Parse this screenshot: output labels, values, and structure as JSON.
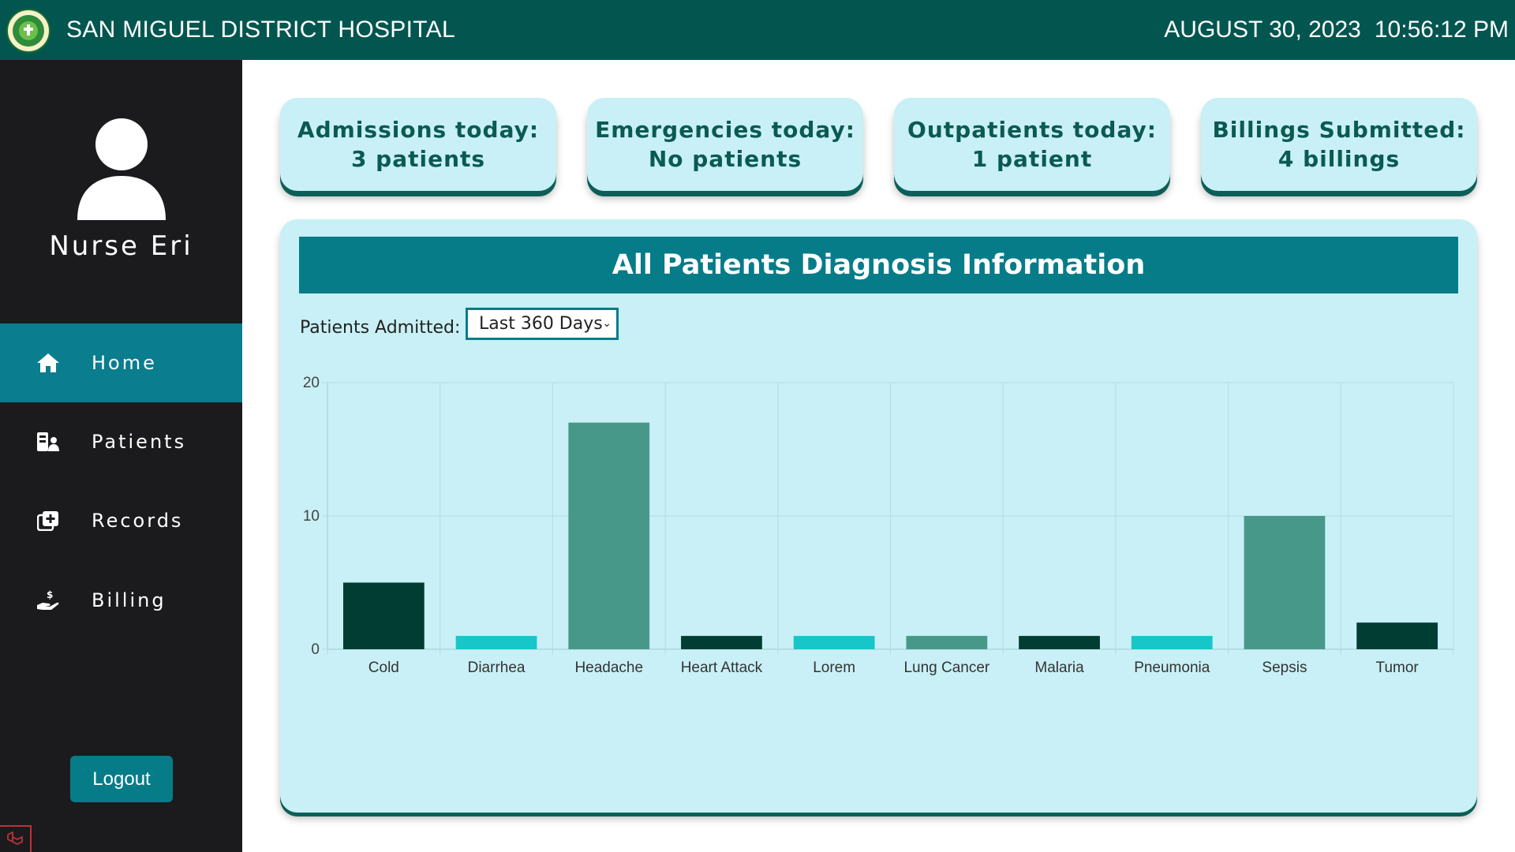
{
  "header": {
    "hospital_name": "SAN MIGUEL DISTRICT HOSPITAL",
    "date": "AUGUST 30, 2023",
    "time": "10:56:12 PM",
    "logo_icon": "hospital-seal-icon"
  },
  "sidebar": {
    "user_name": "Nurse Eri",
    "avatar_icon": "user-avatar-icon",
    "items": [
      {
        "label": "Home",
        "icon": "home-icon",
        "active": true
      },
      {
        "label": "Patients",
        "icon": "patients-icon",
        "active": false
      },
      {
        "label": "Records",
        "icon": "records-icon",
        "active": false
      },
      {
        "label": "Billing",
        "icon": "billing-icon",
        "active": false
      }
    ],
    "logout_label": "Logout"
  },
  "cards": [
    {
      "title": "Admissions today:",
      "value": "3 patients"
    },
    {
      "title": "Emergencies today:",
      "value": "No patients"
    },
    {
      "title": "Outpatients today:",
      "value": "1 patient"
    },
    {
      "title": "Billings Submitted:",
      "value": "4 billings"
    }
  ],
  "panel": {
    "title": "All Patients Diagnosis Information",
    "filter_label": "Patients Admitted:",
    "filter_selected": "Last 360 Days"
  },
  "colors": {
    "header_bg": "#03564f",
    "sidebar_bg": "#1b1b1d",
    "active_nav": "#0a7d8f",
    "card_bg": "#c8f0f6",
    "bar_colors": [
      "#023d33",
      "#17c6c9",
      "#48988a"
    ]
  },
  "chart_data": {
    "type": "bar",
    "categories": [
      "Cold",
      "Diarrhea",
      "Headache",
      "Heart Attack",
      "Lorem",
      "Lung Cancer",
      "Malaria",
      "Pneumonia",
      "Sepsis",
      "Tumor"
    ],
    "values": [
      5,
      1,
      17,
      1,
      1,
      1,
      1,
      1,
      10,
      2
    ],
    "ylim": [
      0,
      20
    ],
    "yticks": [
      0,
      10,
      20
    ],
    "title": "",
    "xlabel": "",
    "ylabel": "",
    "grid": true
  }
}
